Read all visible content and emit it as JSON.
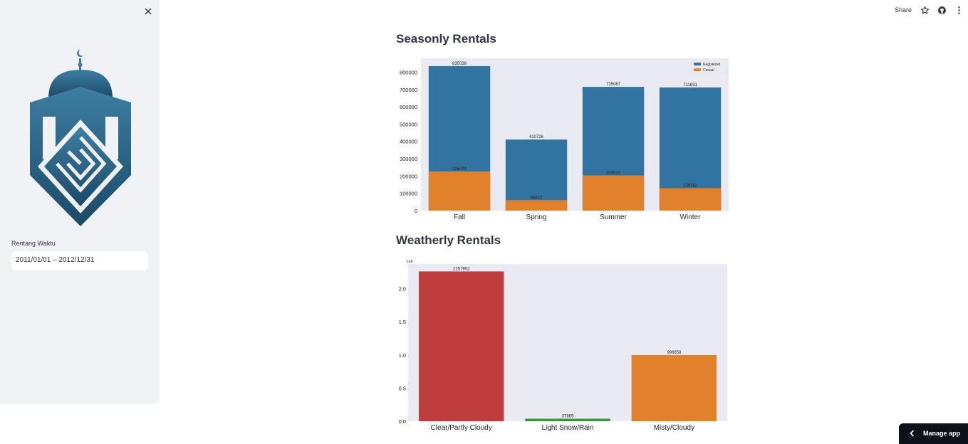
{
  "sidebar": {
    "date_range_label": "Rentang Waktu",
    "date_range_value": "2011/01/01 – 2012/12/31",
    "close_icon": "close-icon",
    "logo_icon": "mosque-logo"
  },
  "topbar": {
    "share_label": "Share",
    "icons": [
      "star-icon",
      "github-icon",
      "more-vertical-icon"
    ]
  },
  "main": {
    "seasonal_title": "Seasonly Rentals",
    "weather_title": "Weatherly Rentals"
  },
  "footer": {
    "manage_app_label": "Manage app"
  },
  "colors": {
    "registered": "#3274a1",
    "casual": "#e1812c",
    "clear": "#c03d3e",
    "snow": "#3a923a",
    "misty": "#e1812c",
    "plot_bg": "#eaeaf2",
    "sidebar_bg": "#f0f2f6"
  },
  "chart_data": [
    {
      "type": "bar",
      "categories": [
        "Fall",
        "Spring",
        "Summer",
        "Winter"
      ],
      "series": [
        {
          "name": "Registered",
          "values": [
            835038,
            410726,
            715067,
            711831
          ]
        },
        {
          "name": "Casual",
          "values": [
            226091,
            60622,
            203522,
            129782
          ]
        }
      ],
      "ylim": [
        0,
        880000
      ],
      "yticks": [
        "0",
        "100000",
        "200000",
        "300000",
        "400000",
        "500000",
        "600000",
        "700000",
        "800000"
      ],
      "legend": "top-right",
      "grid": false
    },
    {
      "type": "bar",
      "categories": [
        "Clear/Partly Cloudy",
        "Light Snow/Rain",
        "Misty/Cloudy"
      ],
      "values": [
        2257952,
        37869,
        996858
      ],
      "ylim": [
        0,
        2370000
      ],
      "yticks": [
        "0.0",
        "0.5",
        "1.0",
        "1.5",
        "2.0"
      ],
      "scale_label": "1e6",
      "grid": false
    }
  ]
}
